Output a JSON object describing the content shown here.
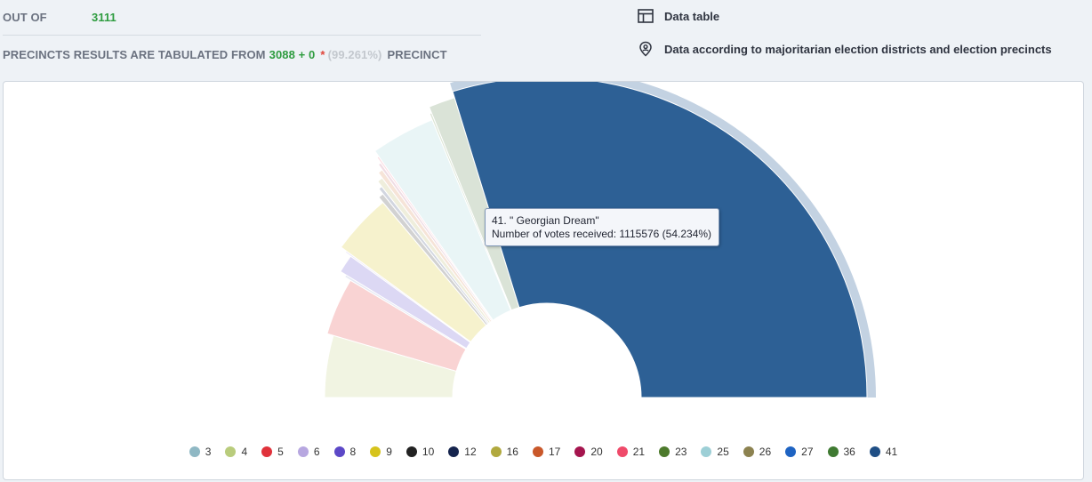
{
  "stats": {
    "out_of_label": "OUT OF",
    "out_of_value": "3111",
    "tabulated_prefix": "PRECINCTS RESULTS ARE TABULATED FROM",
    "tabulated_value": "3088 + 0",
    "tabulated_star": "*",
    "tabulated_pct": "(99.261%)",
    "tabulated_suffix": "PRECINCT"
  },
  "links": {
    "data_table": "Data table",
    "districts": "Data according to majoritarian election districts and election precincts"
  },
  "tooltip": {
    "title": "41. \" Georgian Dream\"",
    "votes_label": "Number of votes received",
    "votes_value": ": 1115576 (54.234%)"
  },
  "legend": [
    {
      "label": "3",
      "color": "#8fb8c4"
    },
    {
      "label": "4",
      "color": "#b9cc7c"
    },
    {
      "label": "5",
      "color": "#e0323b"
    },
    {
      "label": "6",
      "color": "#b7a7e0"
    },
    {
      "label": "8",
      "color": "#5c48c7"
    },
    {
      "label": "9",
      "color": "#d6c31c"
    },
    {
      "label": "10",
      "color": "#222222"
    },
    {
      "label": "12",
      "color": "#15244d"
    },
    {
      "label": "16",
      "color": "#b1a93e"
    },
    {
      "label": "17",
      "color": "#c9582a"
    },
    {
      "label": "20",
      "color": "#a5154e"
    },
    {
      "label": "21",
      "color": "#ef4a6a"
    },
    {
      "label": "23",
      "color": "#4d7a2c"
    },
    {
      "label": "25",
      "color": "#9dcfd6"
    },
    {
      "label": "26",
      "color": "#8c8250"
    },
    {
      "label": "27",
      "color": "#1e63c2"
    },
    {
      "label": "36",
      "color": "#3f7a32"
    },
    {
      "label": "41",
      "color": "#1f4f85"
    }
  ],
  "chart_data": {
    "type": "pie",
    "style": "semicircle-donut",
    "highlighted": "41",
    "slices": [
      {
        "label": "3",
        "value": 8.2,
        "color": "#f1f4e2"
      },
      {
        "label": "5",
        "value": 7.4,
        "color": "#f9d3d3"
      },
      {
        "label": "4",
        "value": 0.3,
        "color": "#e6e9f4"
      },
      {
        "label": "6",
        "value": 2.2,
        "color": "#dcd8f4"
      },
      {
        "label": "8",
        "value": 0.2,
        "color": "#ece8f8"
      },
      {
        "label": "9",
        "value": 7.0,
        "color": "#f6f2cd"
      },
      {
        "label": "10",
        "value": 0.6,
        "color": "#d2d2d2"
      },
      {
        "label": "12",
        "value": 0.4,
        "color": "#d2d6e0"
      },
      {
        "label": "16",
        "value": 0.6,
        "color": "#efeedc"
      },
      {
        "label": "17",
        "value": 0.5,
        "color": "#f6e4d8"
      },
      {
        "label": "20",
        "value": 0.3,
        "color": "#f0dde4"
      },
      {
        "label": "21",
        "value": 0.2,
        "color": "#fbdde3"
      },
      {
        "label": "25",
        "value": 6.3,
        "color": "#e9f5f6"
      },
      {
        "label": "23",
        "value": 0.2,
        "color": "#dde6d6"
      },
      {
        "label": "26",
        "value": 2.5,
        "color": "#dae3d7"
      },
      {
        "label": "41",
        "value": 54.234,
        "color": "#2d6095"
      }
    ]
  }
}
